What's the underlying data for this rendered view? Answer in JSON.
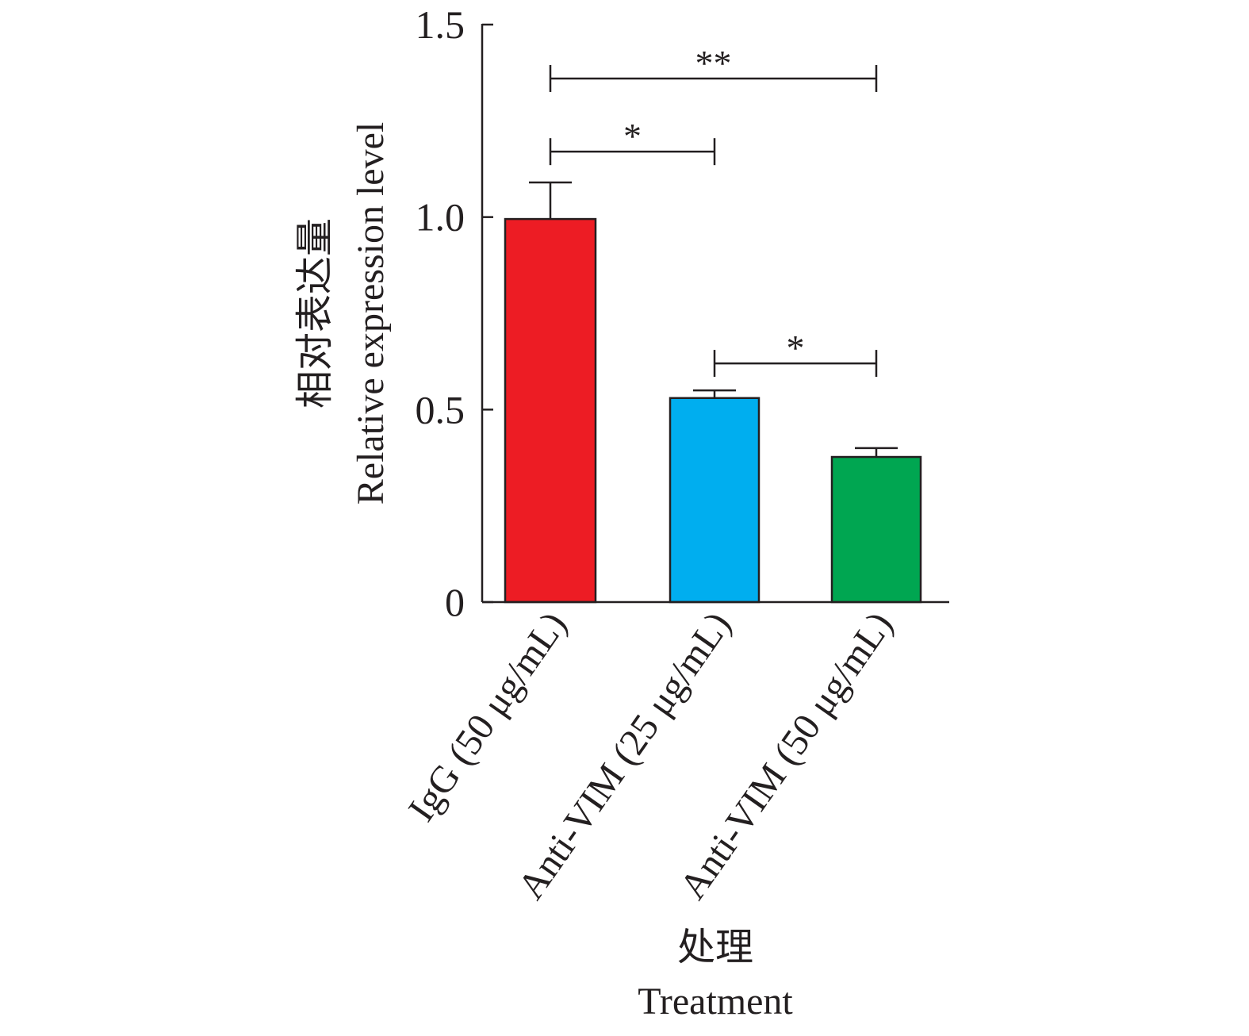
{
  "chart_data": {
    "type": "bar",
    "categories": [
      "IgG (50 μg/mL)",
      "Anti-VIM (25 μg/mL)",
      "Anti-VIM (50 μg/mL)"
    ],
    "values": [
      0.995,
      0.53,
      0.377
    ],
    "errors": [
      0.095,
      0.02,
      0.023
    ],
    "bar_colors": [
      "#ed1c24",
      "#00aeef",
      "#00a651"
    ],
    "ylim": [
      0,
      1.5
    ],
    "yticks": [
      0,
      0.5,
      1.0,
      1.5
    ],
    "ytick_labels": [
      "0",
      "0.5",
      "1.0",
      "1.5"
    ],
    "ylabel_cn": "相对表达量",
    "ylabel_en": "Relative expression level",
    "xlabel_cn": "处理",
    "xlabel_en": "Treatment",
    "significance": [
      {
        "from": 0,
        "to": 2,
        "label": "**",
        "y": 1.36
      },
      {
        "from": 0,
        "to": 1,
        "label": "*",
        "y": 1.17
      },
      {
        "from": 1,
        "to": 2,
        "label": "*",
        "y": 0.62
      }
    ]
  }
}
